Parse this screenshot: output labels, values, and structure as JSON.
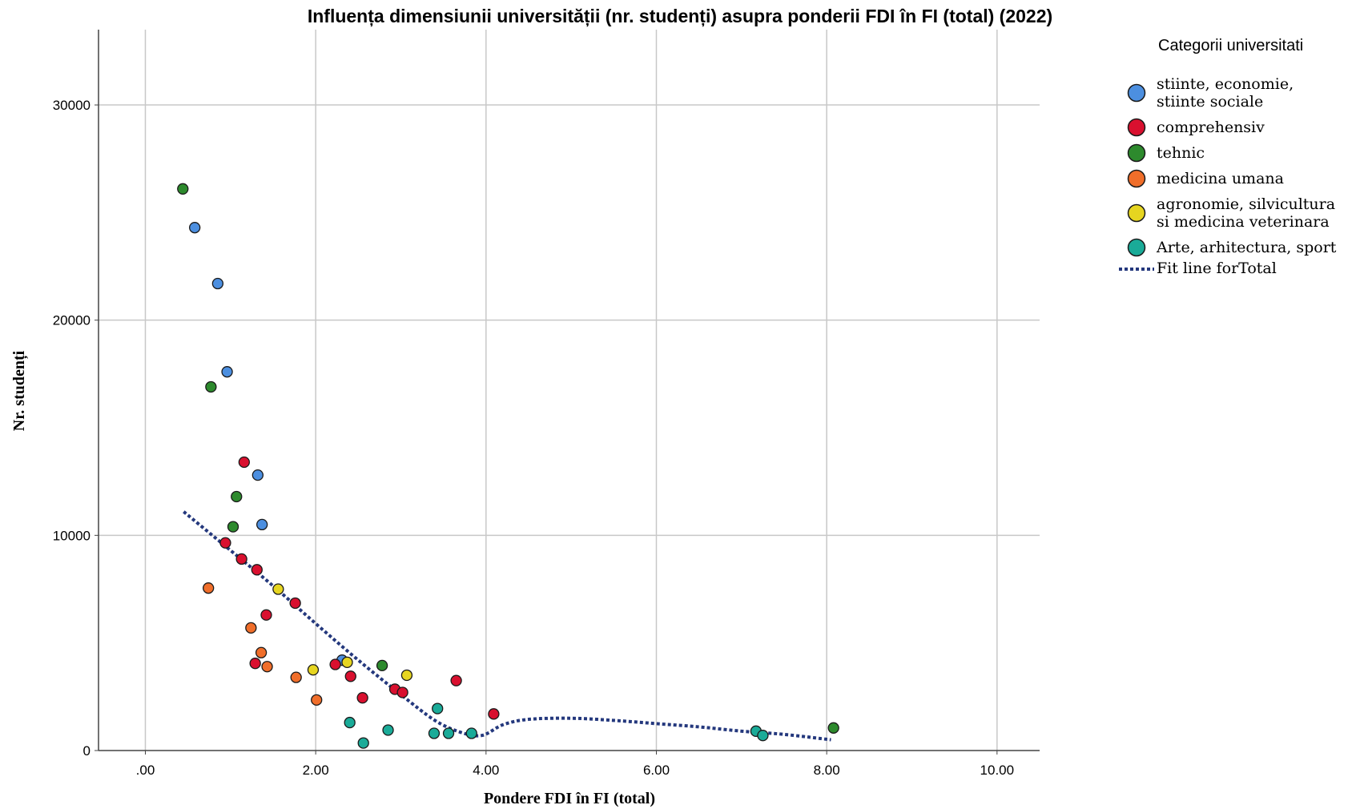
{
  "chart_data": {
    "type": "scatter",
    "title": "Influența dimensiunii universității (nr. studenți) asupra ponderii FDI în FI (total) (2022)",
    "xlabel": "Pondere FDI în FI (total)",
    "ylabel": "Nr. studenți",
    "xlim": [
      -0.55,
      10.5
    ],
    "ylim": [
      0,
      33500
    ],
    "x_ticks": [
      0,
      2,
      4,
      6,
      8,
      10
    ],
    "x_tick_labels": [
      ".00",
      "2.00",
      "4.00",
      "6.00",
      "8.00",
      "10.00"
    ],
    "y_ticks": [
      0,
      10000,
      20000,
      30000
    ],
    "y_tick_labels": [
      "0",
      "10000",
      "20000",
      "30000"
    ],
    "grid": true,
    "legend_position": "right",
    "legend_title": "Categorii universitati",
    "series": [
      {
        "name": "stiinte, economie, stiinte sociale",
        "label_lines": [
          "stiinte, economie,",
          "stiinte sociale"
        ],
        "color": "#4c8fe0",
        "points": [
          [
            0.58,
            24300
          ],
          [
            0.85,
            21700
          ],
          [
            0.96,
            17600
          ],
          [
            1.32,
            12800
          ],
          [
            1.37,
            10500
          ],
          [
            2.31,
            4200
          ]
        ]
      },
      {
        "name": "comprehensiv",
        "label_lines": [
          "comprehensiv"
        ],
        "color": "#d9102f",
        "points": [
          [
            1.16,
            13400
          ],
          [
            0.94,
            9650
          ],
          [
            1.13,
            8900
          ],
          [
            1.31,
            8400
          ],
          [
            1.42,
            6300
          ],
          [
            1.76,
            6850
          ],
          [
            1.29,
            4050
          ],
          [
            2.23,
            4000
          ],
          [
            2.41,
            3450
          ],
          [
            2.55,
            2450
          ],
          [
            2.93,
            2850
          ],
          [
            3.02,
            2700
          ],
          [
            3.65,
            3250
          ],
          [
            4.09,
            1700
          ]
        ]
      },
      {
        "name": "tehnic",
        "label_lines": [
          "tehnic"
        ],
        "color": "#2d8a2d",
        "points": [
          [
            0.44,
            26100
          ],
          [
            0.77,
            16900
          ],
          [
            1.07,
            11800
          ],
          [
            1.03,
            10400
          ],
          [
            2.78,
            3950
          ],
          [
            8.08,
            1050
          ]
        ]
      },
      {
        "name": "medicina umana",
        "label_lines": [
          "medicina umana"
        ],
        "color": "#f06e2a",
        "points": [
          [
            0.74,
            7550
          ],
          [
            1.24,
            5700
          ],
          [
            1.36,
            4550
          ],
          [
            1.43,
            3900
          ],
          [
            1.77,
            3400
          ],
          [
            2.01,
            2350
          ]
        ]
      },
      {
        "name": "agronomie, silvicultura si medicina veterinara",
        "label_lines": [
          "agronomie, silvicultura",
          "si medicina veterinara"
        ],
        "color": "#e6d520",
        "points": [
          [
            1.56,
            7500
          ],
          [
            1.97,
            3750
          ],
          [
            2.37,
            4100
          ],
          [
            3.07,
            3500
          ]
        ]
      },
      {
        "name": "Arte, arhitectura, sport",
        "label_lines": [
          "Arte, arhitectura, sport"
        ],
        "color": "#1aab98",
        "points": [
          [
            2.4,
            1300
          ],
          [
            2.85,
            950
          ],
          [
            2.56,
            350
          ],
          [
            3.43,
            1950
          ],
          [
            3.39,
            800
          ],
          [
            3.56,
            800
          ],
          [
            3.83,
            800
          ],
          [
            7.17,
            900
          ],
          [
            7.25,
            700
          ]
        ]
      }
    ],
    "fit_line": {
      "name": "Fit line forTotal",
      "color": "#24387d",
      "x": [
        0.45,
        1.0,
        1.5,
        2.0,
        2.5,
        3.0,
        3.4,
        3.7,
        3.95,
        4.2,
        4.5,
        5.0,
        5.5,
        6.0,
        6.5,
        7.0,
        7.5,
        8.05
      ],
      "y": [
        11100,
        9300,
        7650,
        5900,
        4200,
        2600,
        1400,
        850,
        700,
        1200,
        1450,
        1500,
        1400,
        1250,
        1100,
        900,
        750,
        500
      ]
    }
  }
}
